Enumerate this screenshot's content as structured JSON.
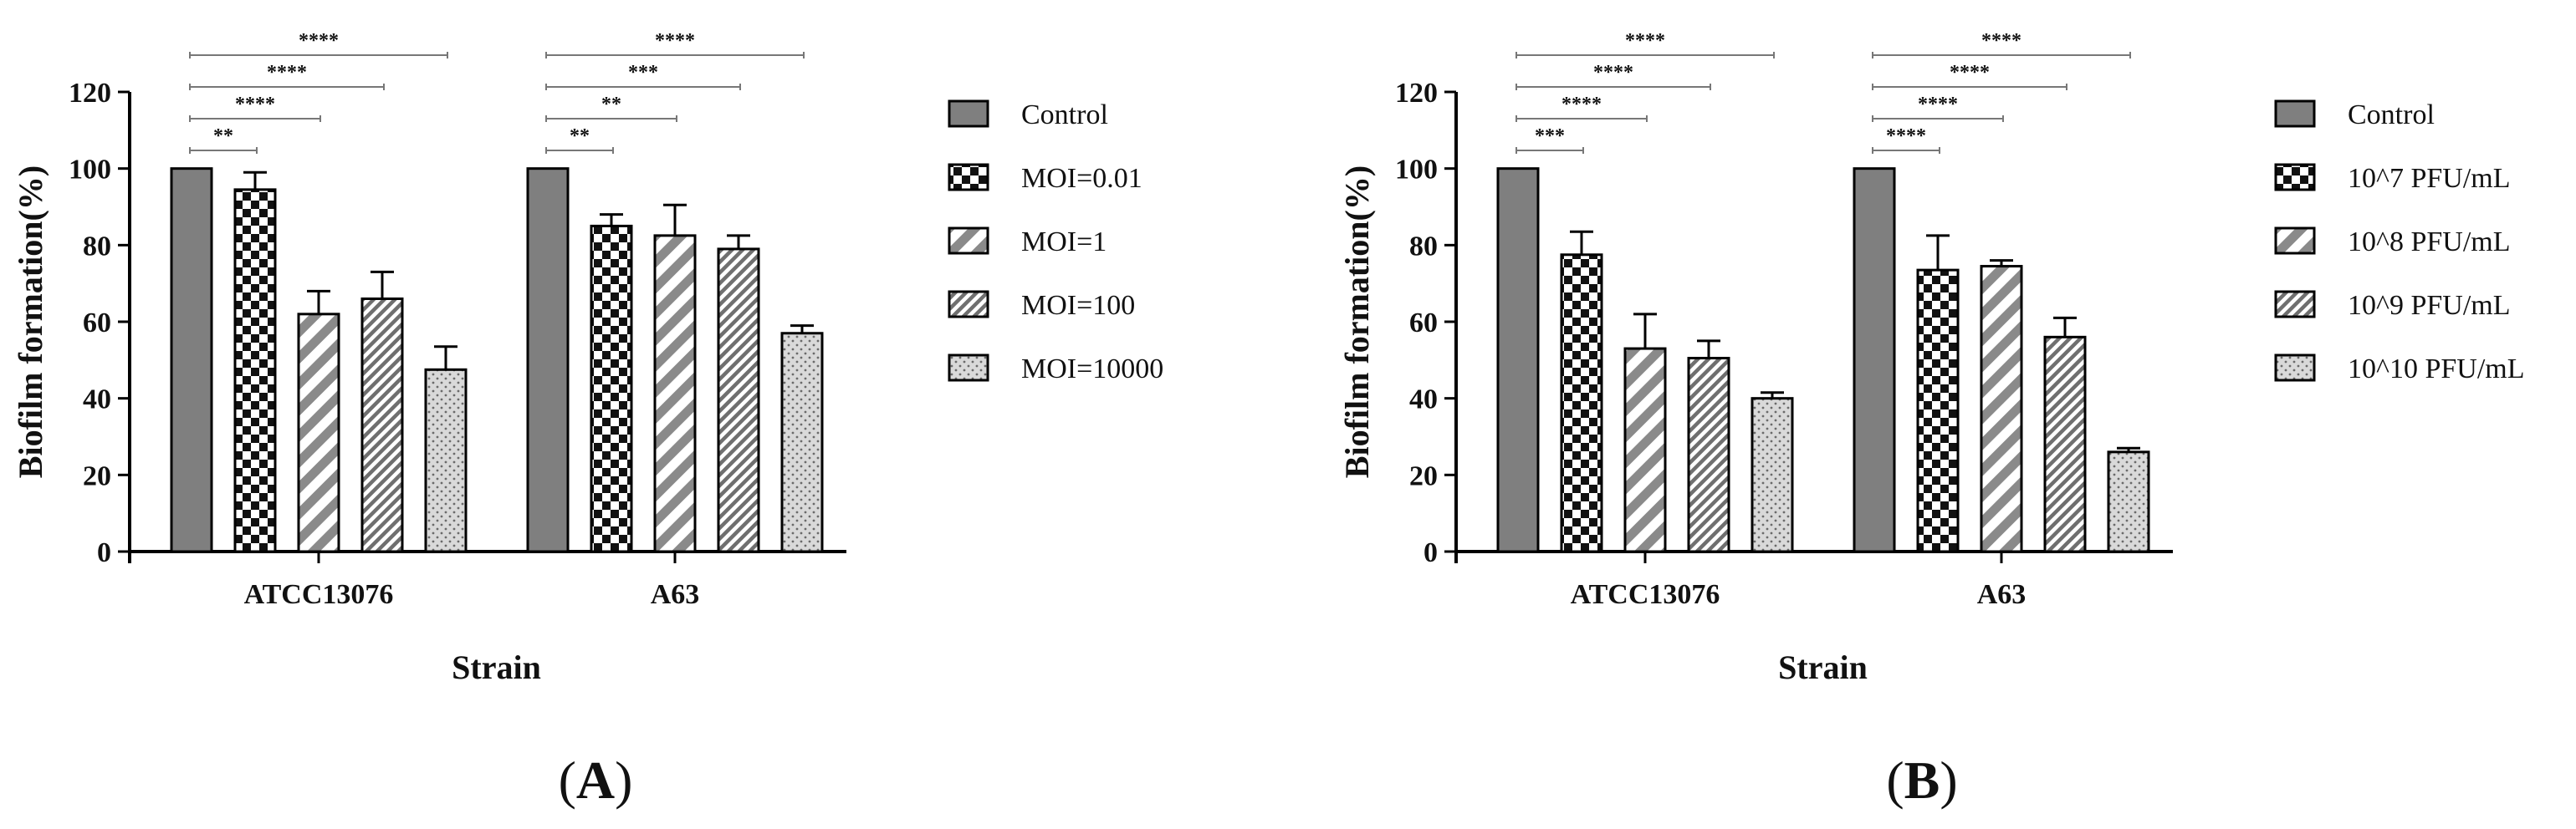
{
  "chart_data": [
    {
      "panel": "A",
      "panel_label": {
        "open": "(",
        "letter": "A",
        "close": ")"
      },
      "type": "bar",
      "title": "",
      "xlabel": "Strain",
      "ylabel": "Biofilm formation(%)",
      "ylim": [
        0,
        120
      ],
      "yticks": [
        0,
        20,
        40,
        60,
        80,
        100,
        120
      ],
      "categories": [
        "ATCC13076",
        "A63"
      ],
      "series": [
        {
          "name": "Control",
          "pattern": "solid",
          "values": [
            100,
            100
          ],
          "errors": [
            0,
            0
          ]
        },
        {
          "name": "MOI=0.01",
          "pattern": "checker",
          "values": [
            94.5,
            85
          ],
          "errors": [
            4.5,
            3
          ]
        },
        {
          "name": "MOI=1",
          "pattern": "wide-diag",
          "values": [
            62,
            82.5
          ],
          "errors": [
            6,
            8
          ]
        },
        {
          "name": "MOI=100",
          "pattern": "narrow-diag",
          "values": [
            66,
            79
          ],
          "errors": [
            7,
            3.5
          ]
        },
        {
          "name": "MOI=10000",
          "pattern": "dots",
          "values": [
            47.5,
            57
          ],
          "errors": [
            6,
            2
          ]
        }
      ],
      "significance": [
        {
          "category": "ATCC13076",
          "to_series": 1,
          "label": "**"
        },
        {
          "category": "ATCC13076",
          "to_series": 2,
          "label": "****"
        },
        {
          "category": "ATCC13076",
          "to_series": 3,
          "label": "****"
        },
        {
          "category": "ATCC13076",
          "to_series": 4,
          "label": "****"
        },
        {
          "category": "A63",
          "to_series": 1,
          "label": "**"
        },
        {
          "category": "A63",
          "to_series": 2,
          "label": "**"
        },
        {
          "category": "A63",
          "to_series": 3,
          "label": "***"
        },
        {
          "category": "A63",
          "to_series": 4,
          "label": "****"
        }
      ]
    },
    {
      "panel": "B",
      "panel_label": {
        "open": "(",
        "letter": "B",
        "close": ")"
      },
      "type": "bar",
      "title": "",
      "xlabel": "Strain",
      "ylabel": "Biofilm formation(%)",
      "ylim": [
        0,
        120
      ],
      "yticks": [
        0,
        20,
        40,
        60,
        80,
        100,
        120
      ],
      "categories": [
        "ATCC13076",
        "A63"
      ],
      "series": [
        {
          "name": "Control",
          "pattern": "solid",
          "values": [
            100,
            100
          ],
          "errors": [
            0,
            0
          ]
        },
        {
          "name": "10^7 PFU/mL",
          "pattern": "checker",
          "values": [
            77.5,
            73.5
          ],
          "errors": [
            6,
            9
          ]
        },
        {
          "name": "10^8 PFU/mL",
          "pattern": "wide-diag",
          "values": [
            53,
            74.5
          ],
          "errors": [
            9,
            1.5
          ]
        },
        {
          "name": "10^9 PFU/mL",
          "pattern": "narrow-diag",
          "values": [
            50.5,
            56
          ],
          "errors": [
            4.5,
            5
          ]
        },
        {
          "name": "10^10 PFU/mL",
          "pattern": "dots",
          "values": [
            40,
            26
          ],
          "errors": [
            1.5,
            1
          ]
        }
      ],
      "significance": [
        {
          "category": "ATCC13076",
          "to_series": 1,
          "label": "***"
        },
        {
          "category": "ATCC13076",
          "to_series": 2,
          "label": "****"
        },
        {
          "category": "ATCC13076",
          "to_series": 3,
          "label": "****"
        },
        {
          "category": "ATCC13076",
          "to_series": 4,
          "label": "****"
        },
        {
          "category": "A63",
          "to_series": 1,
          "label": "****"
        },
        {
          "category": "A63",
          "to_series": 2,
          "label": "****"
        },
        {
          "category": "A63",
          "to_series": 3,
          "label": "****"
        },
        {
          "category": "A63",
          "to_series": 4,
          "label": "****"
        }
      ]
    }
  ]
}
